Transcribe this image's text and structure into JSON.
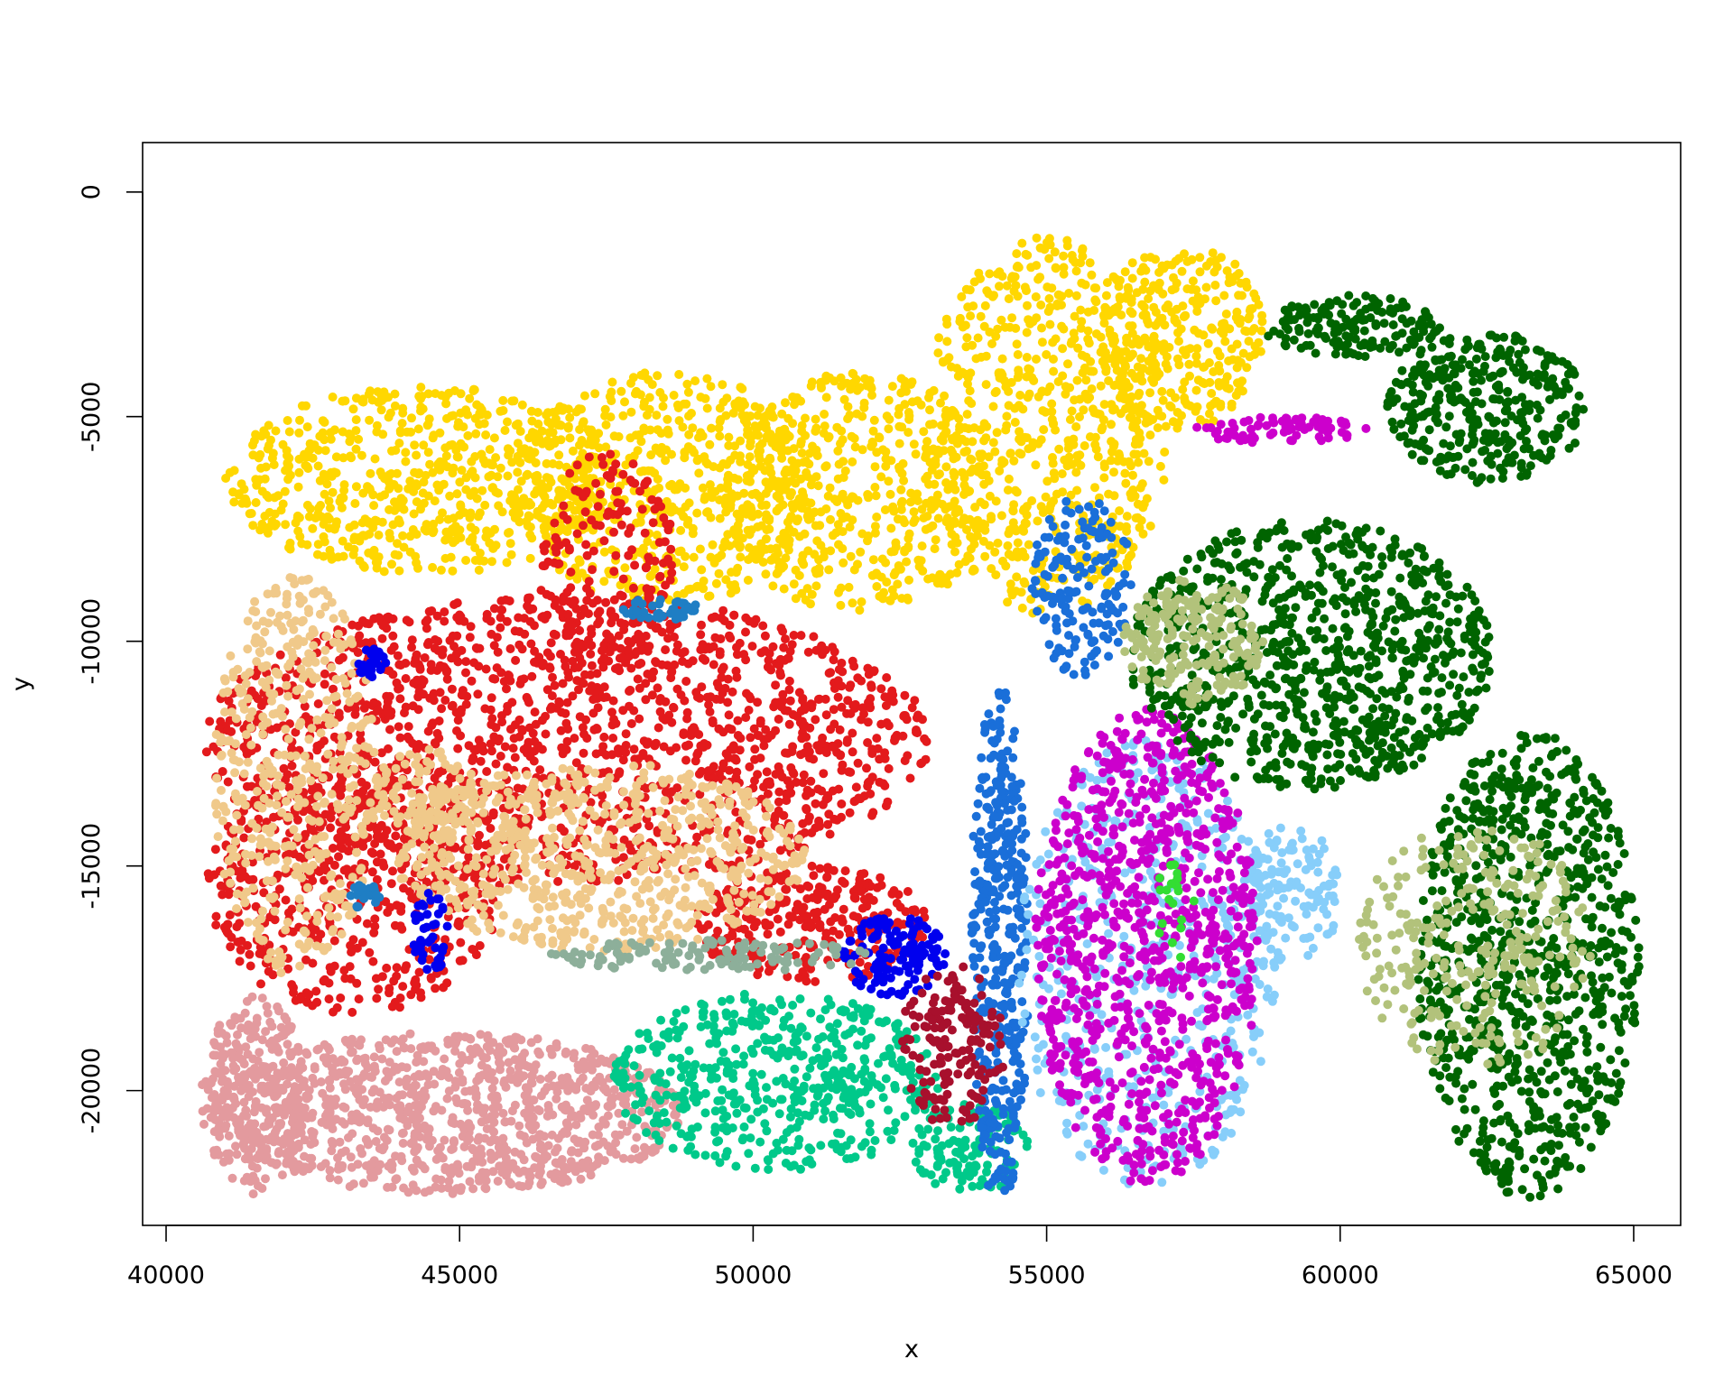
{
  "chart_data": {
    "type": "scatter",
    "title": "",
    "xlabel": "x",
    "ylabel": "y",
    "xlim": [
      39600,
      65800
    ],
    "ylim": [
      -23000,
      1100
    ],
    "x_ticks": [
      40000,
      45000,
      50000,
      55000,
      60000,
      65000
    ],
    "y_ticks": [
      0,
      -5000,
      -10000,
      -15000,
      -20000
    ],
    "x_tick_labels": [
      "40000",
      "45000",
      "50000",
      "55000",
      "60000",
      "65000"
    ],
    "y_tick_labels": [
      "0",
      "-5000",
      "-10000",
      "-15000",
      "-20000"
    ],
    "grid": false,
    "legend": "none",
    "series": [
      {
        "color": "#FFD700",
        "regions": [
          {
            "cx": 44400,
            "cy": -6400,
            "rx": 3400,
            "ry": 2100,
            "n": 650
          },
          {
            "cx": 48500,
            "cy": -6600,
            "rx": 2600,
            "ry": 2600,
            "n": 550
          },
          {
            "cx": 51800,
            "cy": -6700,
            "rx": 2300,
            "ry": 2700,
            "n": 500
          },
          {
            "cx": 55000,
            "cy": -5200,
            "rx": 2100,
            "ry": 4200,
            "n": 650
          },
          {
            "cx": 57300,
            "cy": -3200,
            "rx": 1400,
            "ry": 2100,
            "n": 300
          }
        ]
      },
      {
        "color": "#E31A1C",
        "regions": [
          {
            "cx": 46800,
            "cy": -12200,
            "rx": 6200,
            "ry": 3200,
            "n": 1600
          },
          {
            "cx": 43200,
            "cy": -15500,
            "rx": 2500,
            "ry": 2800,
            "n": 500
          },
          {
            "cx": 47500,
            "cy": -8300,
            "rx": 1200,
            "ry": 2500,
            "n": 180
          },
          {
            "cx": 51000,
            "cy": -16300,
            "rx": 2000,
            "ry": 1300,
            "n": 300
          }
        ]
      },
      {
        "color": "#F0C98A",
        "regions": [
          {
            "cx": 42200,
            "cy": -13000,
            "rx": 1400,
            "ry": 4500,
            "n": 450
          },
          {
            "cx": 47400,
            "cy": -14800,
            "rx": 3500,
            "ry": 2100,
            "n": 700
          },
          {
            "cx": 44400,
            "cy": -13400,
            "rx": 900,
            "ry": 1000,
            "n": 120
          }
        ]
      },
      {
        "color": "#E39A9E",
        "regions": [
          {
            "cx": 44800,
            "cy": -20500,
            "rx": 4000,
            "ry": 1800,
            "n": 1000
          },
          {
            "cx": 41500,
            "cy": -20100,
            "rx": 900,
            "ry": 2200,
            "n": 250
          }
        ]
      },
      {
        "color": "#00C98A",
        "regions": [
          {
            "cx": 50400,
            "cy": -19800,
            "rx": 2800,
            "ry": 2000,
            "n": 500
          },
          {
            "cx": 53700,
            "cy": -21300,
            "rx": 1000,
            "ry": 1000,
            "n": 120
          }
        ]
      },
      {
        "color": "#1A6FD9",
        "regions": [
          {
            "cx": 54200,
            "cy": -16800,
            "rx": 500,
            "ry": 5800,
            "n": 400
          },
          {
            "cx": 55600,
            "cy": -8800,
            "rx": 900,
            "ry": 2000,
            "n": 160
          }
        ]
      },
      {
        "color": "#87CEFA",
        "regions": [
          {
            "cx": 56700,
            "cy": -17200,
            "rx": 2200,
            "ry": 5000,
            "n": 550
          },
          {
            "cx": 59200,
            "cy": -15600,
            "rx": 800,
            "ry": 1600,
            "n": 120
          }
        ]
      },
      {
        "color": "#CC00CC",
        "regions": [
          {
            "cx": 56700,
            "cy": -16800,
            "rx": 1900,
            "ry": 5300,
            "n": 900
          },
          {
            "cx": 59000,
            "cy": -5300,
            "rx": 1500,
            "ry": 300,
            "n": 80
          }
        ]
      },
      {
        "color": "#006400",
        "regions": [
          {
            "cx": 63200,
            "cy": -17200,
            "rx": 1900,
            "ry": 5200,
            "n": 900
          },
          {
            "cx": 59500,
            "cy": -10300,
            "rx": 3100,
            "ry": 3000,
            "n": 900
          },
          {
            "cx": 62500,
            "cy": -4800,
            "rx": 1700,
            "ry": 1700,
            "n": 350
          },
          {
            "cx": 60200,
            "cy": -3000,
            "rx": 1500,
            "ry": 700,
            "n": 150
          }
        ]
      },
      {
        "color": "#B2C27B",
        "regions": [
          {
            "cx": 57500,
            "cy": -10000,
            "rx": 1200,
            "ry": 1400,
            "n": 200
          },
          {
            "cx": 62300,
            "cy": -16800,
            "rx": 2000,
            "ry": 2800,
            "n": 280
          }
        ]
      },
      {
        "color": "#0000EE",
        "regions": [
          {
            "cx": 52400,
            "cy": -17000,
            "rx": 900,
            "ry": 900,
            "n": 130
          },
          {
            "cx": 43500,
            "cy": -10500,
            "rx": 250,
            "ry": 350,
            "n": 30
          },
          {
            "cx": 44500,
            "cy": -16500,
            "rx": 300,
            "ry": 900,
            "n": 40
          }
        ]
      },
      {
        "color": "#8DAF9A",
        "regions": [
          {
            "cx": 49300,
            "cy": -17000,
            "rx": 2800,
            "ry": 350,
            "n": 120
          }
        ]
      },
      {
        "color": "#1F7EC4",
        "regions": [
          {
            "cx": 48400,
            "cy": -9300,
            "rx": 700,
            "ry": 250,
            "n": 40
          },
          {
            "cx": 43400,
            "cy": -15700,
            "rx": 300,
            "ry": 300,
            "n": 25
          }
        ]
      },
      {
        "color": "#A8102D",
        "regions": [
          {
            "cx": 53400,
            "cy": -19000,
            "rx": 900,
            "ry": 1800,
            "n": 160
          }
        ]
      },
      {
        "color": "#33DD33",
        "regions": [
          {
            "cx": 57200,
            "cy": -16000,
            "rx": 400,
            "ry": 1200,
            "n": 20
          }
        ]
      }
    ]
  }
}
